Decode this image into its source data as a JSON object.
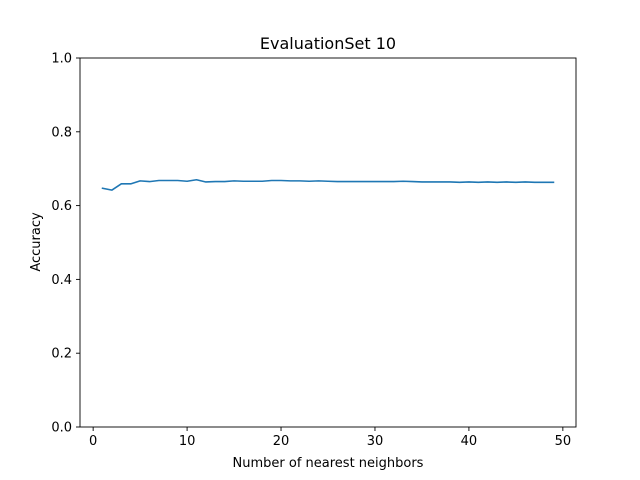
{
  "chart_data": {
    "type": "line",
    "title": "EvaluationSet 10",
    "xlabel": "Number of nearest neighbors",
    "ylabel": "Accuracy",
    "xlim": [
      -1.4,
      51.4
    ],
    "ylim": [
      0.0,
      1.0
    ],
    "xticks": [
      0,
      10,
      20,
      30,
      40,
      50
    ],
    "yticks": [
      0.0,
      0.2,
      0.4,
      0.6,
      0.8,
      1.0
    ],
    "xtick_labels": [
      "0",
      "10",
      "20",
      "30",
      "40",
      "50"
    ],
    "ytick_labels": [
      "0.0",
      "0.2",
      "0.4",
      "0.6",
      "0.8",
      "1.0"
    ],
    "grid": false,
    "series": [
      {
        "color": "#1f77b4",
        "x": [
          1,
          2,
          3,
          4,
          5,
          6,
          7,
          8,
          9,
          10,
          11,
          12,
          13,
          14,
          15,
          16,
          17,
          18,
          19,
          20,
          21,
          22,
          23,
          24,
          25,
          26,
          27,
          28,
          29,
          30,
          31,
          32,
          33,
          34,
          35,
          36,
          37,
          38,
          39,
          40,
          41,
          42,
          43,
          44,
          45,
          46,
          47,
          48,
          49
        ],
        "y": [
          0.647,
          0.642,
          0.659,
          0.659,
          0.667,
          0.665,
          0.668,
          0.668,
          0.668,
          0.666,
          0.67,
          0.664,
          0.665,
          0.665,
          0.667,
          0.666,
          0.666,
          0.666,
          0.668,
          0.668,
          0.667,
          0.667,
          0.666,
          0.667,
          0.666,
          0.665,
          0.665,
          0.665,
          0.665,
          0.665,
          0.665,
          0.665,
          0.666,
          0.665,
          0.664,
          0.664,
          0.664,
          0.664,
          0.663,
          0.664,
          0.663,
          0.664,
          0.663,
          0.664,
          0.663,
          0.664,
          0.663,
          0.663,
          0.663
        ]
      }
    ]
  }
}
